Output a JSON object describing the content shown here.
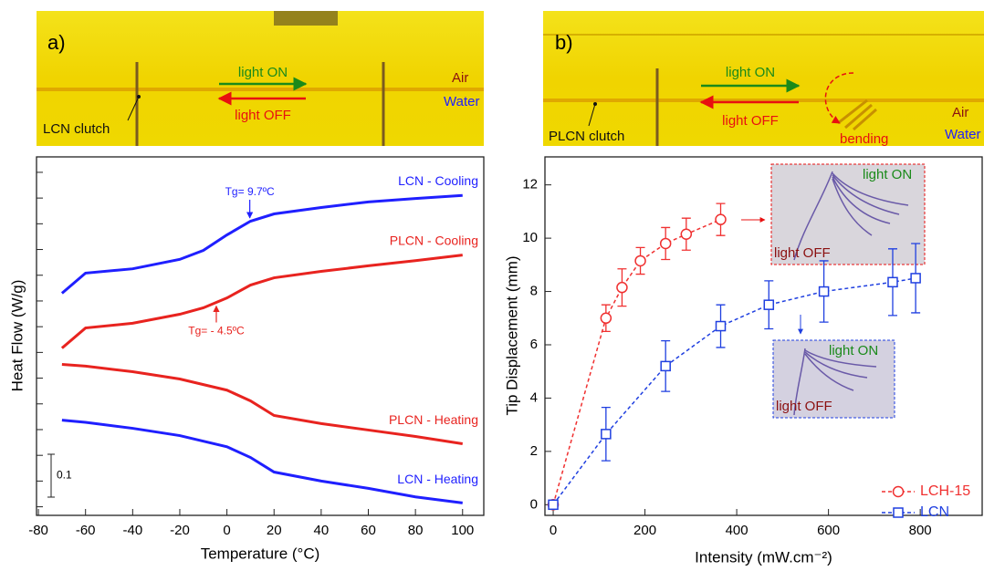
{
  "photos": [
    {
      "label": "a)",
      "light_on": "light ON",
      "light_off": "light OFF",
      "air": "Air",
      "water": "Water",
      "clutch": "LCN clutch"
    },
    {
      "label": "b)",
      "light_on": "light ON",
      "light_off": "light OFF",
      "air": "Air",
      "water": "Water",
      "clutch": "PLCN clutch",
      "bending": "bending"
    }
  ],
  "insets": [
    {
      "on": "light ON",
      "off": "light OFF"
    },
    {
      "on": "light ON",
      "off": "light OFF"
    }
  ],
  "chart_data": [
    {
      "type": "line",
      "x_label": "Temperature (°C)",
      "y_label": "Heat Flow (W/g)",
      "xlim": [
        -80.8,
        109
      ],
      "xticks": [
        -80,
        -60,
        -40,
        -20,
        0,
        20,
        40,
        60,
        80,
        100
      ],
      "ylim": [
        -0.02,
        0.816
      ],
      "yticks": [
        0,
        0.06,
        0.12,
        0.18,
        0.24,
        0.3,
        0.36,
        0.42,
        0.48,
        0.54,
        0.6,
        0.66,
        0.72,
        0.78
      ],
      "ytick_labels": false,
      "scale_bar": 0.1,
      "x": [
        -70,
        -60,
        -40,
        -20,
        -10,
        0,
        10,
        20,
        40,
        60,
        80,
        100
      ],
      "series": [
        {
          "name": "LCN - Cooling",
          "color": "#1f1fff",
          "values": [
            0.498,
            0.545,
            0.555,
            0.577,
            0.598,
            0.634,
            0.666,
            0.683,
            0.698,
            0.711,
            0.719,
            0.726
          ]
        },
        {
          "name": "PLCN - Cooling",
          "color": "#e8231f",
          "values": [
            0.37,
            0.417,
            0.428,
            0.449,
            0.464,
            0.487,
            0.517,
            0.534,
            0.549,
            0.562,
            0.574,
            0.587
          ]
        },
        {
          "name": "PLCN - Heating",
          "color": "#e8231f",
          "values": [
            0.332,
            0.328,
            0.315,
            0.298,
            0.285,
            0.272,
            0.247,
            0.213,
            0.194,
            0.179,
            0.164,
            0.147
          ]
        },
        {
          "name": "LCN - Heating",
          "color": "#1f1fff",
          "values": [
            0.202,
            0.197,
            0.183,
            0.166,
            0.153,
            0.14,
            0.115,
            0.081,
            0.06,
            0.043,
            0.023,
            0.009
          ]
        }
      ],
      "annotations": [
        {
          "text": "Tg= 9.7ºC",
          "x": 9.7
        },
        {
          "text": "Tg= - 4.5ºC",
          "x": -4.5
        }
      ]
    },
    {
      "type": "line",
      "x_label": "Intensity (mW.cm⁻²)",
      "y_label": "Tip Displacement (mm)",
      "xlim": [
        -18,
        935
      ],
      "xticks": [
        0,
        200,
        400,
        600,
        800
      ],
      "ylim": [
        -0.4,
        13.05
      ],
      "yticks": [
        0,
        2,
        4,
        6,
        8,
        10,
        12
      ],
      "ytick_labels": true,
      "linestyle": "dashed",
      "legend": "lower right",
      "series": [
        {
          "name": "LCH-15",
          "color": "#f03030",
          "marker": "circle",
          "x": [
            0,
            115,
            150,
            190,
            245,
            290,
            365
          ],
          "values": [
            0,
            7.0,
            8.15,
            9.15,
            9.8,
            10.15,
            10.7
          ],
          "errors": [
            0,
            0.5,
            0.7,
            0.5,
            0.6,
            0.6,
            0.6
          ]
        },
        {
          "name": "LCN",
          "color": "#1f3fe0",
          "marker": "square",
          "x": [
            0,
            115,
            245,
            365,
            470,
            590,
            740,
            790
          ],
          "values": [
            0,
            2.65,
            5.2,
            6.7,
            7.5,
            8.0,
            8.35,
            8.5
          ],
          "errors": [
            0,
            1,
            0.95,
            0.8,
            0.9,
            1.15,
            1.25,
            1.3
          ]
        }
      ]
    }
  ]
}
